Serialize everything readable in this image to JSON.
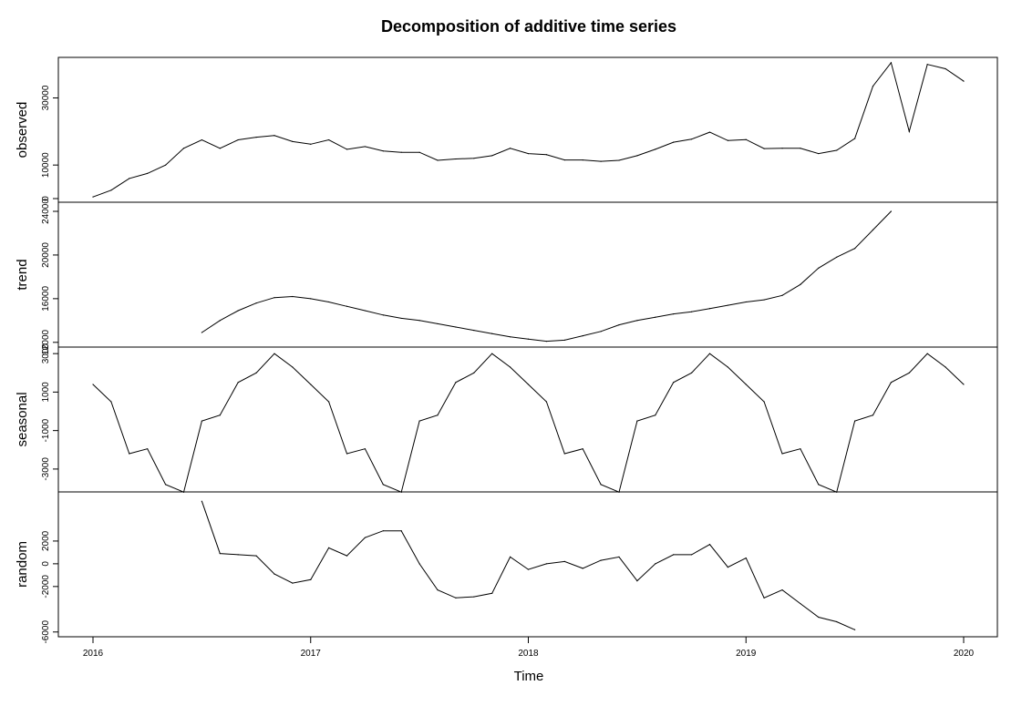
{
  "chart_data": {
    "type": "line",
    "title": "Decomposition of additive time series",
    "xlabel": "Time",
    "x_ticks": [
      "2016",
      "2017",
      "2018",
      "2019",
      "2020"
    ],
    "xlim": [
      2016,
      2020
    ],
    "panels": [
      {
        "name": "observed",
        "ylabel": "observed",
        "y_ticks": [
          "0",
          "10000",
          "30000"
        ],
        "tick_values": [
          0,
          10000,
          30000
        ],
        "ylim": [
          0,
          41000
        ],
        "start": 2016.0,
        "values": [
          500,
          2500,
          6000,
          7500,
          10000,
          15000,
          17500,
          15000,
          17500,
          18300,
          18800,
          17000,
          16200,
          17500,
          14700,
          15500,
          14200,
          13800,
          13800,
          11400,
          11800,
          12000,
          12800,
          15000,
          13400,
          13100,
          11500,
          11500,
          11100,
          11400,
          12800,
          14700,
          16800,
          17700,
          19800,
          17300,
          17600,
          14900,
          15000,
          15000,
          13400,
          14400,
          17900,
          33500,
          40500,
          20000,
          40000,
          38700,
          35000
        ]
      },
      {
        "name": "trend",
        "ylabel": "trend",
        "y_ticks": [
          "12000",
          "16000",
          "20000",
          "24000"
        ],
        "tick_values": [
          12000,
          16000,
          20000,
          24000
        ],
        "ylim": [
          11900,
          24500
        ],
        "start": 2016.5,
        "values": [
          12900,
          14000,
          14900,
          15600,
          16100,
          16200,
          16000,
          15700,
          15300,
          14900,
          14500,
          14200,
          14000,
          13700,
          13400,
          13100,
          12800,
          12500,
          12300,
          12100,
          12200,
          12600,
          13000,
          13600,
          14000,
          14300,
          14600,
          14800,
          15100,
          15400,
          15700,
          15900,
          16300,
          17300,
          18800,
          19800,
          20600,
          22300,
          24000
        ]
      },
      {
        "name": "seasonal",
        "ylabel": "seasonal",
        "y_ticks": [
          "-3000",
          "-1000",
          "1000",
          "3000"
        ],
        "tick_values": [
          -3000,
          -1000,
          1000,
          3000
        ],
        "ylim": [
          -4000,
          3150
        ],
        "start": 2016.0,
        "values": [
          1400,
          500,
          -2200,
          -1950,
          -3800,
          -4200,
          -500,
          -200,
          1500,
          2000,
          3000,
          2300,
          1400,
          500,
          -2200,
          -1950,
          -3800,
          -4200,
          -500,
          -200,
          1500,
          2000,
          3000,
          2300,
          1400,
          500,
          -2200,
          -1950,
          -3800,
          -4200,
          -500,
          -200,
          1500,
          2000,
          3000,
          2300,
          1400,
          500,
          -2200,
          -1950,
          -3800,
          -4200,
          -500,
          -200,
          1500,
          2000,
          3000,
          2300,
          1400
        ]
      },
      {
        "name": "random",
        "ylabel": "random",
        "y_ticks": [
          "-6000",
          "-2000",
          "0",
          "2000"
        ],
        "tick_values": [
          -6000,
          -2000,
          0,
          2000
        ],
        "ylim": [
          -6100,
          6000
        ],
        "start": 2016.5,
        "values": [
          5500,
          900,
          800,
          700,
          -900,
          -1700,
          -1400,
          1400,
          700,
          2300,
          2900,
          2900,
          0,
          -2300,
          -3000,
          -2900,
          -2600,
          600,
          -500,
          0,
          200,
          -400,
          300,
          600,
          -1500,
          0,
          800,
          800,
          1700,
          -300,
          500,
          -3000,
          -2300,
          -3500,
          -4700,
          -5100,
          -5800
        ]
      }
    ]
  }
}
